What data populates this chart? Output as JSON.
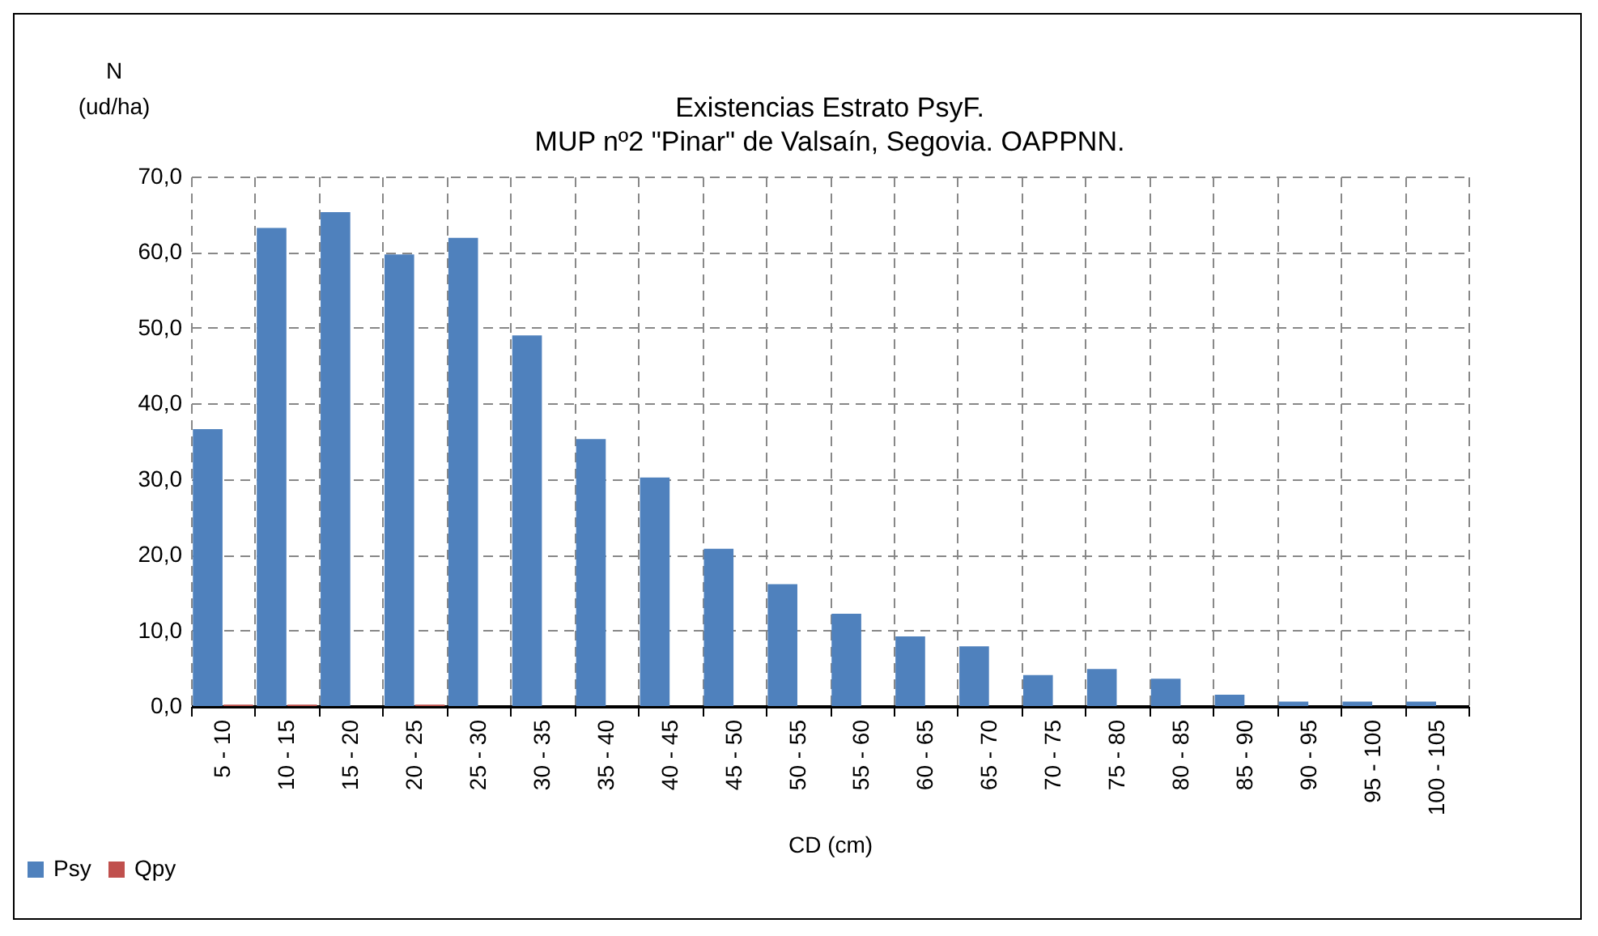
{
  "chart_data": {
    "type": "bar",
    "title": "Existencias Estrato PsyF.",
    "subtitle": "MUP nº2 \"Pinar\" de Valsaín, Segovia. OAPPNN.",
    "ylabel": "N\n(ud/ha)",
    "xlabel": "CD (cm)",
    "categories": [
      "5 - 10",
      "10 - 15",
      "15 - 20",
      "20 - 25",
      "25 - 30",
      "30 - 35",
      "35 - 40",
      "40 - 45",
      "45 - 50",
      "50 - 55",
      "55 - 60",
      "60 - 65",
      "65 - 70",
      "70 - 75",
      "75 - 80",
      "80 - 85",
      "85 - 90",
      "90 - 95",
      "95 - 100",
      "100 - 105"
    ],
    "series": [
      {
        "name": "Psy",
        "color": "#4f81bd",
        "values": [
          36.6,
          63.2,
          65.3,
          59.7,
          61.9,
          49.0,
          35.3,
          30.2,
          20.8,
          16.1,
          12.2,
          9.2,
          7.9,
          4.1,
          4.9,
          3.6,
          1.5,
          0.6,
          0.6,
          0.6
        ]
      },
      {
        "name": "Qpy",
        "color": "#c0504d",
        "values": [
          0.2,
          0.2,
          0,
          0.2,
          0,
          0,
          0,
          0,
          0,
          0,
          0,
          0,
          0,
          0,
          0,
          0,
          0,
          0,
          0,
          0
        ]
      }
    ],
    "ylim": [
      0,
      70
    ],
    "yticks": [
      {
        "value": 0,
        "label": "0,0"
      },
      {
        "value": 10,
        "label": "10,0"
      },
      {
        "value": 20,
        "label": "20,0"
      },
      {
        "value": 30,
        "label": "30,0"
      },
      {
        "value": 40,
        "label": "40,0"
      },
      {
        "value": 50,
        "label": "50,0"
      },
      {
        "value": 60,
        "label": "60,0"
      },
      {
        "value": 70,
        "label": "70,0"
      }
    ],
    "grid": true,
    "legend": "bottom left"
  }
}
